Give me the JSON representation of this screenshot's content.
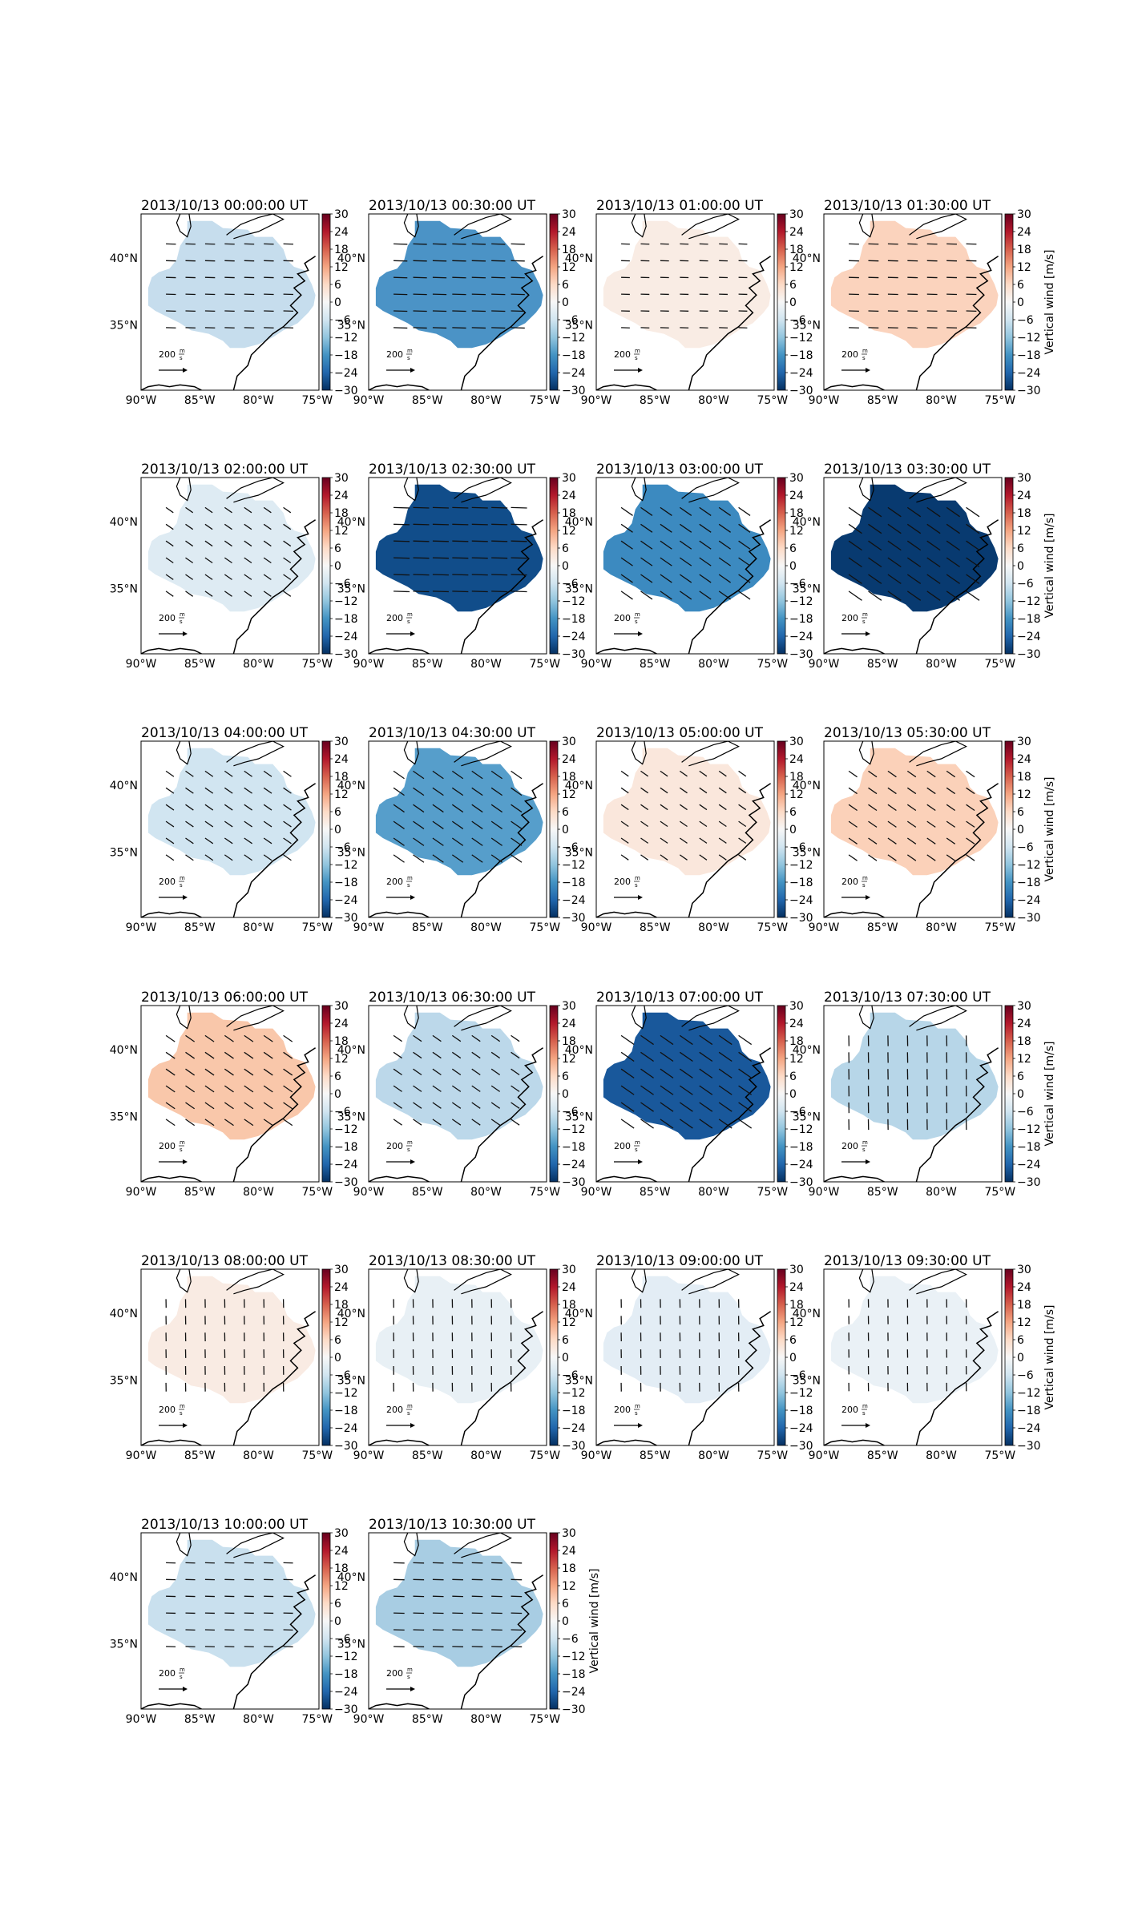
{
  "figure": {
    "colorbar": {
      "label": "Vertical wind [m/s]",
      "ticks": [
        "30",
        "24",
        "18",
        "12",
        "6",
        "0",
        "−6",
        "−12",
        "−18",
        "−24",
        "−30"
      ],
      "cmap": [
        "#67001f",
        "#b2182b",
        "#d6604d",
        "#f4a582",
        "#fddbc7",
        "#f7f7f7",
        "#d1e5f0",
        "#92c5de",
        "#4393c3",
        "#2166ac",
        "#053061"
      ],
      "vmin": -30,
      "vmax": 30
    },
    "axes": {
      "x_ticks": [
        "90°W",
        "85°W",
        "80°W",
        "75°W"
      ],
      "y_ticks": [
        "40°N",
        "35°N"
      ]
    },
    "reference_arrow_label": "200",
    "reference_unit_num": "m",
    "reference_unit_den": "s",
    "panels": [
      {
        "title": "2013/10/13 00:00:00 UT",
        "color": "#c6dded",
        "vertical_wind": -6,
        "wind_dir": "east"
      },
      {
        "title": "2013/10/13 00:30:00 UT",
        "color": "#4b93c6",
        "vertical_wind": -18,
        "wind_dir": "east"
      },
      {
        "title": "2013/10/13 01:00:00 UT",
        "color": "#f9ece4",
        "vertical_wind": 2,
        "wind_dir": "east"
      },
      {
        "title": "2013/10/13 01:30:00 UT",
        "color": "#fbd3bd",
        "vertical_wind": 7,
        "wind_dir": "east"
      },
      {
        "title": "2013/10/13 02:00:00 UT",
        "color": "#deebf3",
        "vertical_wind": -3,
        "wind_dir": "southeast"
      },
      {
        "title": "2013/10/13 02:30:00 UT",
        "color": "#114d8a",
        "vertical_wind": -26,
        "wind_dir": "east"
      },
      {
        "title": "2013/10/13 03:00:00 UT",
        "color": "#3c8ac0",
        "vertical_wind": -19,
        "wind_dir": "southeast"
      },
      {
        "title": "2013/10/13 03:30:00 UT",
        "color": "#083a70",
        "vertical_wind": -29,
        "wind_dir": "southeast"
      },
      {
        "title": "2013/10/13 04:00:00 UT",
        "color": "#d1e5f1",
        "vertical_wind": -5,
        "wind_dir": "southeast"
      },
      {
        "title": "2013/10/13 04:30:00 UT",
        "color": "#569ecb",
        "vertical_wind": -16,
        "wind_dir": "southeast"
      },
      {
        "title": "2013/10/13 05:00:00 UT",
        "color": "#fae7dc",
        "vertical_wind": 3,
        "wind_dir": "southeast"
      },
      {
        "title": "2013/10/13 05:30:00 UT",
        "color": "#fbd1b9",
        "vertical_wind": 7,
        "wind_dir": "southeast"
      },
      {
        "title": "2013/10/13 06:00:00 UT",
        "color": "#f9c7aa",
        "vertical_wind": 9,
        "wind_dir": "southeast"
      },
      {
        "title": "2013/10/13 06:30:00 UT",
        "color": "#bcd8ea",
        "vertical_wind": -7,
        "wind_dir": "southeast"
      },
      {
        "title": "2013/10/13 07:00:00 UT",
        "color": "#19589b",
        "vertical_wind": -24,
        "wind_dir": "southeast"
      },
      {
        "title": "2013/10/13 07:30:00 UT",
        "color": "#b7d6e8",
        "vertical_wind": -8,
        "wind_dir": "south"
      },
      {
        "title": "2013/10/13 08:00:00 UT",
        "color": "#f9ebe3",
        "vertical_wind": 2,
        "wind_dir": "south"
      },
      {
        "title": "2013/10/13 08:30:00 UT",
        "color": "#e8f0f5",
        "vertical_wind": -2,
        "wind_dir": "south"
      },
      {
        "title": "2013/10/13 09:00:00 UT",
        "color": "#e3edf5",
        "vertical_wind": -2,
        "wind_dir": "south"
      },
      {
        "title": "2013/10/13 09:30:00 UT",
        "color": "#eaf1f6",
        "vertical_wind": -1,
        "wind_dir": "south"
      },
      {
        "title": "2013/10/13 10:00:00 UT",
        "color": "#c9e0ee",
        "vertical_wind": -5,
        "wind_dir": "east"
      },
      {
        "title": "2013/10/13 10:30:00 UT",
        "color": "#a8cde3",
        "vertical_wind": -9,
        "wind_dir": "east"
      }
    ]
  }
}
